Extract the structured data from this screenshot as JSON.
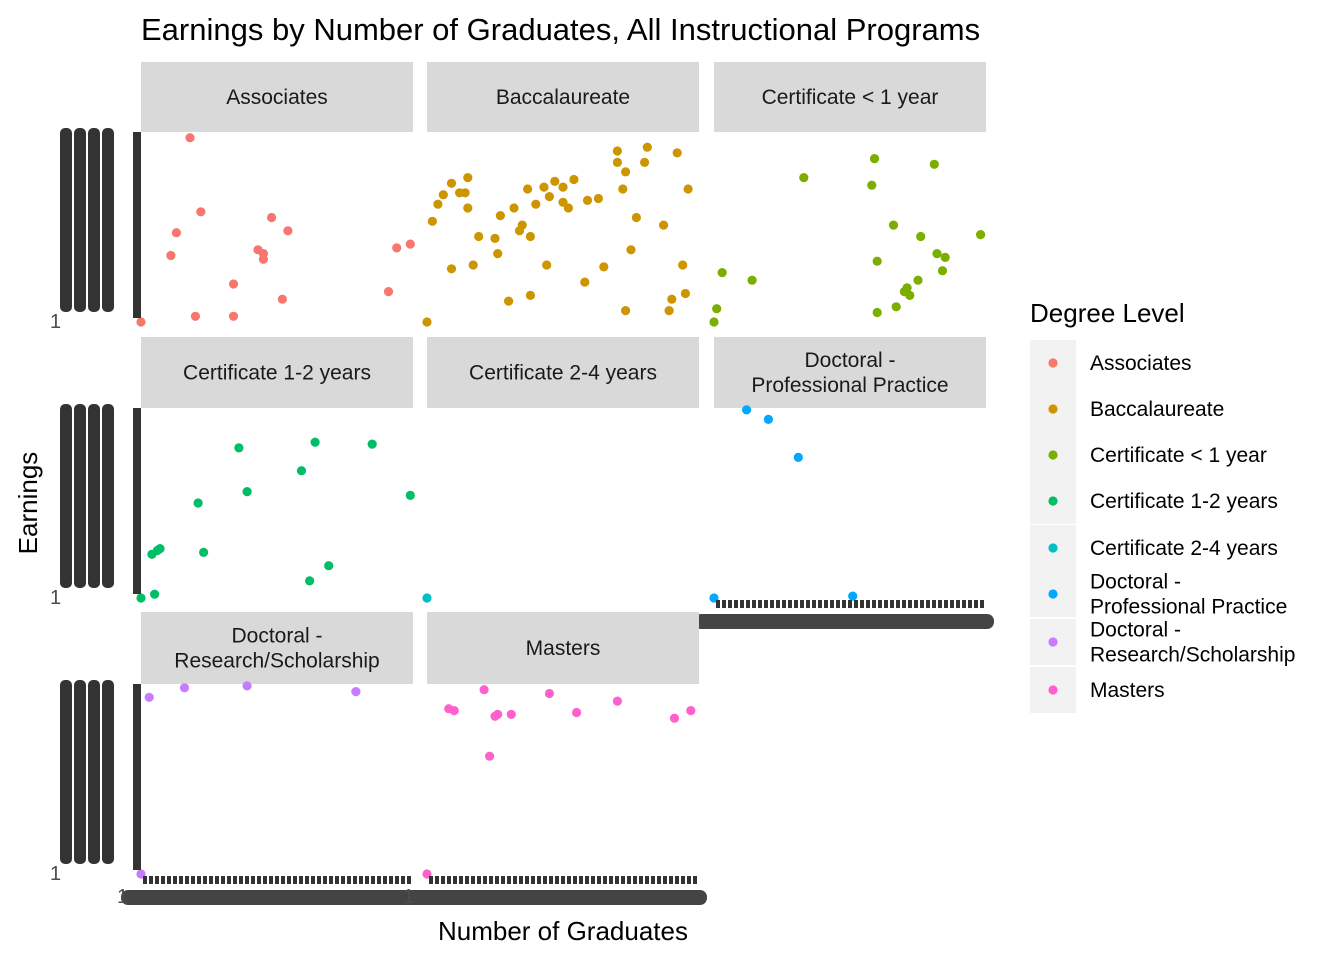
{
  "chart_data": {
    "type": "scatter",
    "title": "Earnings by Number of Graduates, All Instructional Programs",
    "xlabel": "Number of Graduates",
    "ylabel": "Earnings",
    "legend_title": "Degree Level",
    "legend_position": "right",
    "facets": [
      "Associates",
      "Baccalaureate",
      "Certificate < 1 year",
      "Certificate 1-2 years",
      "Certificate 2-4 years",
      "Doctoral - Professional Practice",
      "Doctoral - Research/Scholarship",
      "Masters"
    ],
    "facet_labels": [
      [
        "Associates"
      ],
      [
        "Baccalaureate"
      ],
      [
        "Certificate < 1 year"
      ],
      [
        "Certificate 1-2 years"
      ],
      [
        "Certificate 2-4 years"
      ],
      [
        "Doctoral -",
        "Professional Practice"
      ],
      [
        "Doctoral -",
        "Research/Scholarship"
      ],
      [
        "Masters"
      ]
    ],
    "legend_labels": [
      [
        "Associates"
      ],
      [
        "Baccalaureate"
      ],
      [
        "Certificate < 1 year"
      ],
      [
        "Certificate 1-2 years"
      ],
      [
        "Certificate 2-4 years"
      ],
      [
        "Doctoral -",
        "Professional Practice"
      ],
      [
        "Doctoral -",
        "Research/Scholarship"
      ],
      [
        "Masters"
      ]
    ],
    "colors": [
      "#F8766D",
      "#CD9600",
      "#7CAE00",
      "#00BE67",
      "#00BFC4",
      "#00A9FF",
      "#C77CFF",
      "#FF61CC"
    ],
    "x_scale": "discrete",
    "y_scale": "discrete",
    "x_ticks_note": "overplotted",
    "y_ticks_note": "overplotted",
    "series": [
      {
        "name": "Associates",
        "points": [
          [
            0.0,
            0.0
          ],
          [
            0.18,
            0.97
          ],
          [
            0.13,
            0.47
          ],
          [
            0.11,
            0.35
          ],
          [
            0.22,
            0.58
          ],
          [
            0.2,
            0.03
          ],
          [
            0.34,
            0.2
          ],
          [
            0.34,
            0.03
          ],
          [
            0.43,
            0.38
          ],
          [
            0.45,
            0.33
          ],
          [
            0.45,
            0.36
          ],
          [
            0.48,
            0.55
          ],
          [
            0.52,
            0.12
          ],
          [
            0.54,
            0.48
          ],
          [
            0.91,
            0.16
          ],
          [
            0.94,
            0.39
          ],
          [
            0.99,
            0.41
          ]
        ]
      },
      {
        "name": "Baccalaureate",
        "points": [
          [
            0.0,
            0.0
          ],
          [
            0.02,
            0.53
          ],
          [
            0.04,
            0.62
          ],
          [
            0.06,
            0.67
          ],
          [
            0.09,
            0.73
          ],
          [
            0.09,
            0.28
          ],
          [
            0.12,
            0.68
          ],
          [
            0.14,
            0.68
          ],
          [
            0.15,
            0.76
          ],
          [
            0.15,
            0.6
          ],
          [
            0.17,
            0.3
          ],
          [
            0.19,
            0.45
          ],
          [
            0.25,
            0.44
          ],
          [
            0.26,
            0.36
          ],
          [
            0.27,
            0.56
          ],
          [
            0.3,
            0.11
          ],
          [
            0.32,
            0.6
          ],
          [
            0.34,
            0.48
          ],
          [
            0.35,
            0.51
          ],
          [
            0.37,
            0.7
          ],
          [
            0.38,
            0.45
          ],
          [
            0.38,
            0.14
          ],
          [
            0.4,
            0.62
          ],
          [
            0.43,
            0.71
          ],
          [
            0.44,
            0.3
          ],
          [
            0.45,
            0.66
          ],
          [
            0.47,
            0.74
          ],
          [
            0.5,
            0.63
          ],
          [
            0.5,
            0.71
          ],
          [
            0.52,
            0.6
          ],
          [
            0.54,
            0.75
          ],
          [
            0.58,
            0.21
          ],
          [
            0.59,
            0.64
          ],
          [
            0.63,
            0.65
          ],
          [
            0.65,
            0.29
          ],
          [
            0.7,
            0.9
          ],
          [
            0.7,
            0.84
          ],
          [
            0.72,
            0.7
          ],
          [
            0.73,
            0.79
          ],
          [
            0.73,
            0.06
          ],
          [
            0.75,
            0.38
          ],
          [
            0.77,
            0.55
          ],
          [
            0.8,
            0.84
          ],
          [
            0.81,
            0.92
          ],
          [
            0.87,
            0.51
          ],
          [
            0.89,
            0.06
          ],
          [
            0.9,
            0.12
          ],
          [
            0.92,
            0.89
          ],
          [
            0.94,
            0.3
          ],
          [
            0.95,
            0.15
          ],
          [
            0.96,
            0.7
          ]
        ]
      },
      {
        "name": "Certificate < 1 year",
        "points": [
          [
            0.0,
            0.0
          ],
          [
            0.01,
            0.07
          ],
          [
            0.03,
            0.26
          ],
          [
            0.14,
            0.22
          ],
          [
            0.33,
            0.76
          ],
          [
            0.58,
            0.72
          ],
          [
            0.59,
            0.86
          ],
          [
            0.6,
            0.32
          ],
          [
            0.6,
            0.05
          ],
          [
            0.66,
            0.51
          ],
          [
            0.67,
            0.08
          ],
          [
            0.7,
            0.16
          ],
          [
            0.71,
            0.18
          ],
          [
            0.72,
            0.14
          ],
          [
            0.75,
            0.22
          ],
          [
            0.76,
            0.45
          ],
          [
            0.81,
            0.83
          ],
          [
            0.82,
            0.36
          ],
          [
            0.84,
            0.27
          ],
          [
            0.85,
            0.34
          ],
          [
            0.98,
            0.46
          ]
        ]
      },
      {
        "name": "Certificate 1-2 years",
        "points": [
          [
            0.0,
            0.0
          ],
          [
            0.05,
            0.02
          ],
          [
            0.04,
            0.23
          ],
          [
            0.06,
            0.25
          ],
          [
            0.07,
            0.26
          ],
          [
            0.21,
            0.5
          ],
          [
            0.23,
            0.24
          ],
          [
            0.36,
            0.79
          ],
          [
            0.39,
            0.56
          ],
          [
            0.59,
            0.67
          ],
          [
            0.62,
            0.09
          ],
          [
            0.64,
            0.82
          ],
          [
            0.69,
            0.17
          ],
          [
            0.85,
            0.81
          ],
          [
            0.99,
            0.54
          ]
        ]
      },
      {
        "name": "Certificate 2-4 years",
        "points": [
          [
            0.0,
            0.0
          ]
        ]
      },
      {
        "name": "Doctoral - Professional Practice",
        "points": [
          [
            0.0,
            0.0
          ],
          [
            0.12,
            0.99
          ],
          [
            0.2,
            0.94
          ],
          [
            0.31,
            0.74
          ],
          [
            0.51,
            0.01
          ]
        ]
      },
      {
        "name": "Doctoral - Research/Scholarship",
        "points": [
          [
            0.0,
            0.0
          ],
          [
            0.03,
            0.93
          ],
          [
            0.16,
            0.98
          ],
          [
            0.39,
            0.99
          ],
          [
            0.79,
            0.96
          ]
        ]
      },
      {
        "name": "Masters",
        "points": [
          [
            0.0,
            0.0
          ],
          [
            0.08,
            0.87
          ],
          [
            0.1,
            0.86
          ],
          [
            0.21,
            0.97
          ],
          [
            0.23,
            0.62
          ],
          [
            0.25,
            0.83
          ],
          [
            0.26,
            0.84
          ],
          [
            0.31,
            0.84
          ],
          [
            0.45,
            0.95
          ],
          [
            0.55,
            0.85
          ],
          [
            0.7,
            0.91
          ],
          [
            0.91,
            0.82
          ],
          [
            0.97,
            0.86
          ]
        ]
      }
    ]
  }
}
